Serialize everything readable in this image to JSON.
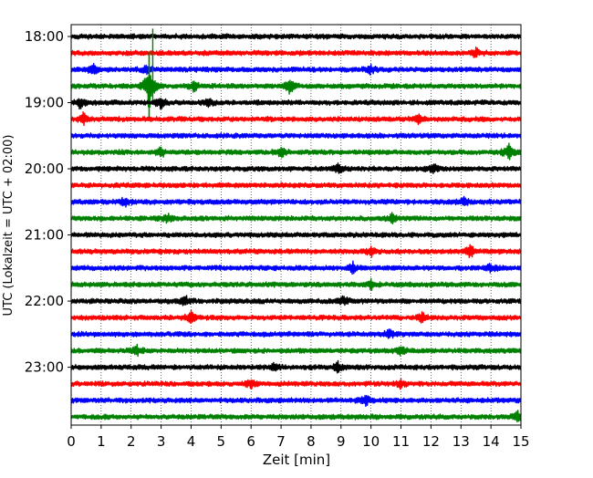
{
  "chart_data": {
    "type": "line",
    "chart_kind": "helicorder / seismogram drum plot",
    "title": "",
    "xlabel": "Zeit  [min]",
    "ylabel": "UTC (Lokalzeit = UTC + 02:00)",
    "xlim": [
      0,
      15
    ],
    "x_ticks": [
      "0",
      "1",
      "2",
      "3",
      "4",
      "5",
      "6",
      "7",
      "8",
      "9",
      "10",
      "11",
      "12",
      "13",
      "14",
      "15"
    ],
    "y_ticks": [
      "18:00",
      "19:00",
      "20:00",
      "21:00",
      "22:00",
      "23:00"
    ],
    "grid": "vertical dotted lines at each minute",
    "trace_interval_minutes": 15,
    "trace_color_cycle": [
      "#000000",
      "#ff0000",
      "#0000ff",
      "#008000"
    ],
    "traces": [
      {
        "start": "18:00",
        "color": "#000000",
        "events": []
      },
      {
        "start": "18:15",
        "color": "#ff0000",
        "events": [
          {
            "x": 13.5,
            "amp": 1.2
          }
        ]
      },
      {
        "start": "18:30",
        "color": "#0000ff",
        "events": [
          {
            "x": 0.7,
            "amp": 1.5
          },
          {
            "x": 2.5,
            "amp": 1.2
          },
          {
            "x": 10.0,
            "amp": 1.2
          }
        ]
      },
      {
        "start": "18:45",
        "color": "#008000",
        "events": [
          {
            "x": 2.6,
            "amp": 7.0
          },
          {
            "x": 4.1,
            "amp": 1.3
          },
          {
            "x": 7.3,
            "amp": 2.2
          }
        ]
      },
      {
        "start": "19:00",
        "color": "#000000",
        "events": [
          {
            "x": 0.3,
            "amp": 1.3
          },
          {
            "x": 3.0,
            "amp": 2.0
          },
          {
            "x": 4.6,
            "amp": 1.2
          }
        ]
      },
      {
        "start": "19:15",
        "color": "#ff0000",
        "events": [
          {
            "x": 0.4,
            "amp": 1.4
          },
          {
            "x": 11.6,
            "amp": 1.1
          }
        ]
      },
      {
        "start": "19:30",
        "color": "#0000ff",
        "events": []
      },
      {
        "start": "19:45",
        "color": "#008000",
        "events": [
          {
            "x": 3.0,
            "amp": 1.3
          },
          {
            "x": 7.0,
            "amp": 1.2
          },
          {
            "x": 14.6,
            "amp": 1.9
          }
        ]
      },
      {
        "start": "20:00",
        "color": "#000000",
        "events": [
          {
            "x": 8.9,
            "amp": 1.2
          },
          {
            "x": 12.1,
            "amp": 1.2
          }
        ]
      },
      {
        "start": "20:15",
        "color": "#ff0000",
        "events": []
      },
      {
        "start": "20:30",
        "color": "#0000ff",
        "events": [
          {
            "x": 1.8,
            "amp": 1.4
          },
          {
            "x": 13.1,
            "amp": 1.1
          }
        ]
      },
      {
        "start": "20:45",
        "color": "#008000",
        "events": [
          {
            "x": 3.2,
            "amp": 1.2
          },
          {
            "x": 10.7,
            "amp": 1.1
          }
        ]
      },
      {
        "start": "21:00",
        "color": "#000000",
        "events": []
      },
      {
        "start": "21:15",
        "color": "#ff0000",
        "events": [
          {
            "x": 10.0,
            "amp": 1.3
          },
          {
            "x": 13.3,
            "amp": 1.6
          }
        ]
      },
      {
        "start": "21:30",
        "color": "#0000ff",
        "events": [
          {
            "x": 9.4,
            "amp": 1.3
          },
          {
            "x": 14.0,
            "amp": 1.1
          }
        ]
      },
      {
        "start": "21:45",
        "color": "#008000",
        "events": [
          {
            "x": 10.0,
            "amp": 1.2
          }
        ]
      },
      {
        "start": "22:00",
        "color": "#000000",
        "events": [
          {
            "x": 3.8,
            "amp": 1.3
          },
          {
            "x": 9.1,
            "amp": 1.1
          }
        ]
      },
      {
        "start": "22:15",
        "color": "#ff0000",
        "events": [
          {
            "x": 4.0,
            "amp": 1.4
          },
          {
            "x": 11.7,
            "amp": 1.1
          }
        ]
      },
      {
        "start": "22:30",
        "color": "#0000ff",
        "events": [
          {
            "x": 10.6,
            "amp": 1.2
          }
        ]
      },
      {
        "start": "22:45",
        "color": "#008000",
        "events": [
          {
            "x": 2.2,
            "amp": 1.3
          },
          {
            "x": 11.0,
            "amp": 1.1
          }
        ]
      },
      {
        "start": "23:00",
        "color": "#000000",
        "events": [
          {
            "x": 6.8,
            "amp": 1.2
          },
          {
            "x": 8.9,
            "amp": 1.3
          }
        ]
      },
      {
        "start": "23:15",
        "color": "#ff0000",
        "events": [
          {
            "x": 6.0,
            "amp": 1.2
          },
          {
            "x": 11.0,
            "amp": 1.1
          }
        ]
      },
      {
        "start": "23:30",
        "color": "#0000ff",
        "events": [
          {
            "x": 9.8,
            "amp": 1.3
          }
        ]
      },
      {
        "start": "23:45",
        "color": "#008000",
        "events": [
          {
            "x": 14.9,
            "amp": 1.2
          }
        ]
      }
    ]
  }
}
